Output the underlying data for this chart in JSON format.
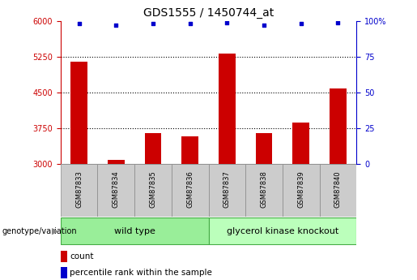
{
  "title": "GDS1555 / 1450744_at",
  "samples": [
    "GSM87833",
    "GSM87834",
    "GSM87835",
    "GSM87836",
    "GSM87837",
    "GSM87838",
    "GSM87839",
    "GSM87840"
  ],
  "counts": [
    5150,
    3080,
    3650,
    3580,
    5310,
    3640,
    3870,
    4590
  ],
  "percentile_ranks": [
    98,
    97,
    98,
    98,
    99,
    97,
    98,
    99
  ],
  "ylim_left": [
    3000,
    6000
  ],
  "ylim_right": [
    0,
    100
  ],
  "yticks_left": [
    3000,
    3750,
    4500,
    5250,
    6000
  ],
  "yticks_right": [
    0,
    25,
    50,
    75,
    100
  ],
  "bar_color": "#cc0000",
  "dot_color": "#0000cc",
  "bar_width": 0.45,
  "wild_type_label": "wild type",
  "knockout_label": "glycerol kinase knockout",
  "wild_type_color": "#99ee99",
  "knockout_color": "#bbffbb",
  "sample_box_color": "#cccccc",
  "genotype_label": "genotype/variation",
  "legend_count_label": "count",
  "legend_percentile_label": "percentile rank within the sample",
  "title_fontsize": 10,
  "tick_fontsize": 7,
  "background_color": "#ffffff",
  "left_tick_color": "#cc0000",
  "right_tick_color": "#0000cc"
}
